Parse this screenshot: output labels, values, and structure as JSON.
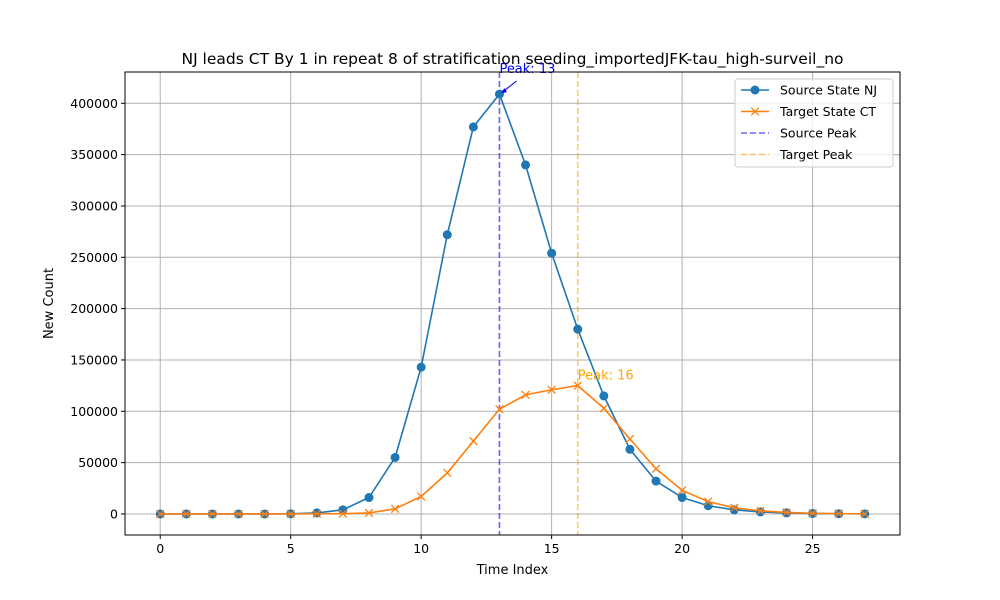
{
  "chart_data": {
    "type": "line",
    "title": "NJ leads CT By 1 in repeat 8 of stratification seeding_importedJFK-tau_high-surveil_no",
    "xlabel": "Time Index",
    "ylabel": "New Count",
    "xlim": [
      -1.35,
      28.35
    ],
    "ylim": [
      -20500,
      430500
    ],
    "xticks": [
      0,
      5,
      10,
      15,
      20,
      25
    ],
    "xtick_labels": [
      "0",
      "5",
      "10",
      "15",
      "20",
      "25"
    ],
    "yticks": [
      0,
      50000,
      100000,
      150000,
      200000,
      250000,
      300000,
      350000,
      400000
    ],
    "ytick_labels": [
      "0",
      "50000",
      "100000",
      "150000",
      "200000",
      "250000",
      "300000",
      "350000",
      "400000"
    ],
    "grid": true,
    "legend_position": "top-right",
    "x": [
      0,
      1,
      2,
      3,
      4,
      5,
      6,
      7,
      8,
      9,
      10,
      11,
      12,
      13,
      14,
      15,
      16,
      17,
      18,
      19,
      20,
      21,
      22,
      23,
      24,
      25,
      26,
      27
    ],
    "series": [
      {
        "name": "Source State NJ",
        "color": "#1f77b4",
        "marker": "circle",
        "values": [
          0,
          0,
          0,
          0,
          0,
          200,
          1000,
          4000,
          16000,
          55000,
          143000,
          272000,
          377000,
          409000,
          340000,
          254000,
          180000,
          115000,
          63000,
          32000,
          16000,
          8000,
          4000,
          2000,
          1000,
          500,
          200,
          100
        ]
      },
      {
        "name": "Target State CT",
        "color": "#ff7f0e",
        "marker": "x",
        "values": [
          0,
          0,
          0,
          0,
          0,
          0,
          100,
          300,
          1000,
          5000,
          17000,
          40000,
          71000,
          102000,
          116000,
          121000,
          125000,
          103000,
          73000,
          44000,
          23000,
          12000,
          6000,
          3000,
          1500,
          700,
          300,
          100
        ]
      }
    ],
    "vlines": [
      {
        "name": "Source Peak",
        "x": 13,
        "color": "#0000ff"
      },
      {
        "name": "Target Peak",
        "x": 16,
        "color": "#ffa500"
      }
    ],
    "annotations": [
      {
        "text": "Peak: 13",
        "x": 13,
        "y": 409000,
        "color": "#0000ff"
      },
      {
        "text": "Peak: 16",
        "x": 16,
        "y": 125000,
        "color": "#ffa500"
      }
    ]
  }
}
